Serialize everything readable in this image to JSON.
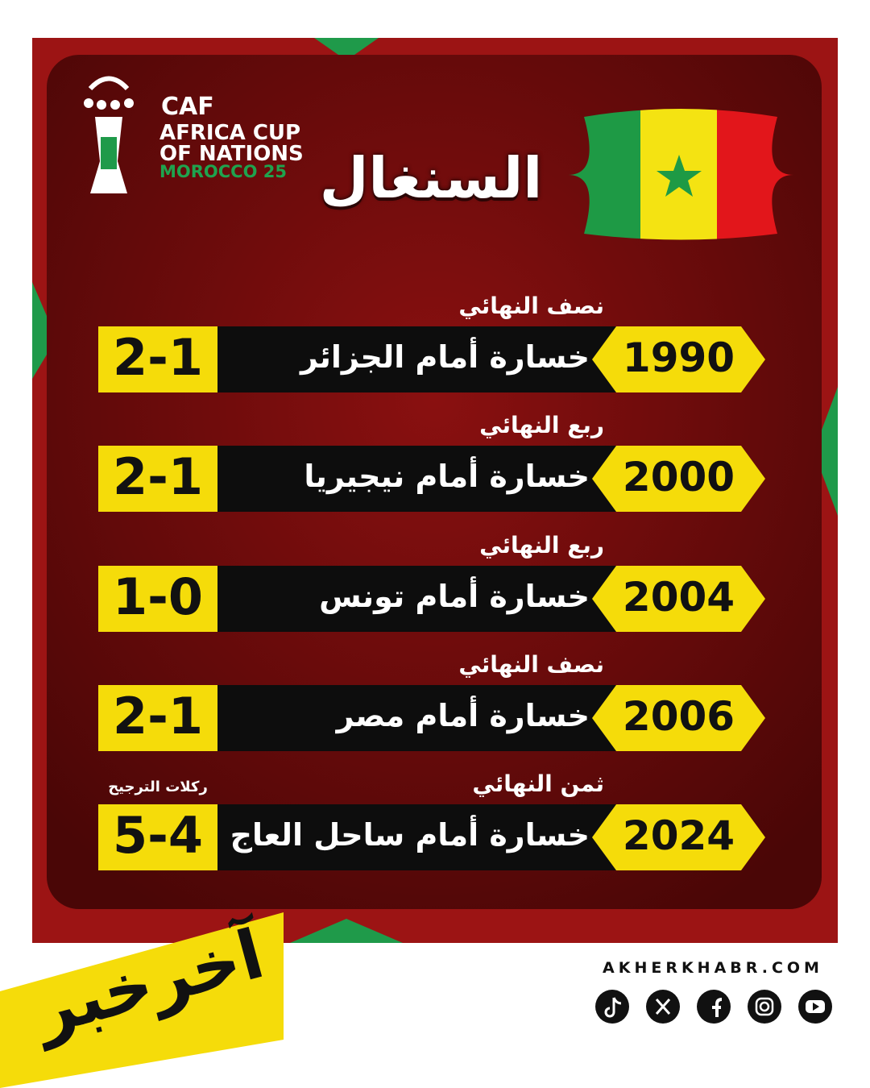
{
  "logo": {
    "brand": "CAF",
    "line1": "AFRICA CUP",
    "line2": "OF NATIONS",
    "line3": "MOROCCO 25"
  },
  "title": "السنغال",
  "rows": [
    {
      "stage": "نصف النهائي",
      "year": "1990",
      "result": "خسارة أمام الجزائر",
      "score": "2-1"
    },
    {
      "stage": "ربع النهائي",
      "year": "2000",
      "result": "خسارة أمام نيجيريا",
      "score": "2-1"
    },
    {
      "stage": "ربع النهائي",
      "year": "2004",
      "result": "خسارة أمام تونس",
      "score": "1-0"
    },
    {
      "stage": "نصف النهائي",
      "year": "2006",
      "result": "خسارة أمام مصر",
      "score": "2-1"
    },
    {
      "stage": "ثمن النهائي",
      "year": "2024",
      "result": "خسارة أمام ساحل العاج",
      "score": "5-4",
      "note": "ركلات الترجيح"
    }
  ],
  "footer": {
    "brand": "آخرخبر",
    "website": "AKHERKHABR.COM"
  }
}
